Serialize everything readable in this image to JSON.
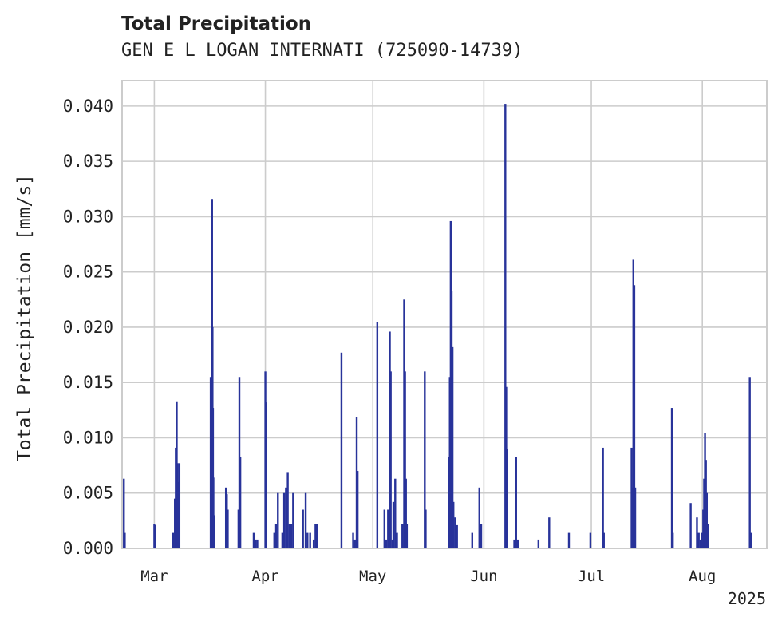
{
  "chart_data": {
    "type": "bar",
    "title": "Total Precipitation",
    "subtitle": "GEN E L LOGAN INTERNATI (725090-14739)",
    "ylabel": "Total Precipitation [mm/s]",
    "xlabel": "",
    "year_label": "2025",
    "bar_color": "#28339a",
    "grid": true,
    "xlim": [
      "2025-02-20",
      "2025-08-19"
    ],
    "ylim": [
      0,
      0.0423
    ],
    "x_ticks": [
      {
        "date": "2025-03-01",
        "label": "Mar"
      },
      {
        "date": "2025-04-01",
        "label": "Apr"
      },
      {
        "date": "2025-05-01",
        "label": "May"
      },
      {
        "date": "2025-06-01",
        "label": "Jun"
      },
      {
        "date": "2025-07-01",
        "label": "Jul"
      },
      {
        "date": "2025-08-01",
        "label": "Aug"
      }
    ],
    "y_ticks": [
      {
        "value": 0.0,
        "label": "0.000"
      },
      {
        "value": 0.005,
        "label": "0.005"
      },
      {
        "value": 0.01,
        "label": "0.010"
      },
      {
        "value": 0.015,
        "label": "0.015"
      },
      {
        "value": 0.02,
        "label": "0.020"
      },
      {
        "value": 0.025,
        "label": "0.025"
      },
      {
        "value": 0.03,
        "label": "0.030"
      },
      {
        "value": 0.035,
        "label": "0.035"
      },
      {
        "value": 0.04,
        "label": "0.040"
      }
    ],
    "series": [
      {
        "points": [
          [
            "2025-02-20T12:00",
            0.0063
          ],
          [
            "2025-02-20T18:00",
            0.0014
          ],
          [
            "2025-03-01T00:00",
            0.0022
          ],
          [
            "2025-03-01T06:00",
            0.0021
          ],
          [
            "2025-03-06T06:00",
            0.0014
          ],
          [
            "2025-03-06T18:00",
            0.0045
          ],
          [
            "2025-03-07T00:00",
            0.0091
          ],
          [
            "2025-03-07T06:00",
            0.0133
          ],
          [
            "2025-03-07T12:00",
            0.0077
          ],
          [
            "2025-03-07T18:00",
            0.006
          ],
          [
            "2025-03-08T00:00",
            0.0077
          ],
          [
            "2025-03-16T18:00",
            0.0155
          ],
          [
            "2025-03-17T00:00",
            0.0218
          ],
          [
            "2025-03-17T03:00",
            0.0316
          ],
          [
            "2025-03-17T06:00",
            0.02
          ],
          [
            "2025-03-17T09:00",
            0.0127
          ],
          [
            "2025-03-17T12:00",
            0.0064
          ],
          [
            "2025-03-17T18:00",
            0.003
          ],
          [
            "2025-03-21T00:00",
            0.0055
          ],
          [
            "2025-03-21T06:00",
            0.0049
          ],
          [
            "2025-03-21T12:00",
            0.0035
          ],
          [
            "2025-03-24T12:00",
            0.0035
          ],
          [
            "2025-03-24T18:00",
            0.0155
          ],
          [
            "2025-03-25T00:00",
            0.0083
          ],
          [
            "2025-03-28T18:00",
            0.0014
          ],
          [
            "2025-03-29T06:00",
            0.0008
          ],
          [
            "2025-03-29T18:00",
            0.0008
          ],
          [
            "2025-04-01T00:00",
            0.016
          ],
          [
            "2025-04-01T06:00",
            0.0132
          ],
          [
            "2025-04-03T12:00",
            0.0014
          ],
          [
            "2025-04-04T00:00",
            0.0022
          ],
          [
            "2025-04-04T12:00",
            0.005
          ],
          [
            "2025-04-05T18:00",
            0.0014
          ],
          [
            "2025-04-06T06:00",
            0.005
          ],
          [
            "2025-04-06T18:00",
            0.0055
          ],
          [
            "2025-04-07T06:00",
            0.0069
          ],
          [
            "2025-04-07T18:00",
            0.0022
          ],
          [
            "2025-04-08T06:00",
            0.0022
          ],
          [
            "2025-04-08T18:00",
            0.005
          ],
          [
            "2025-04-11T12:00",
            0.0035
          ],
          [
            "2025-04-12T06:00",
            0.005
          ],
          [
            "2025-04-12T18:00",
            0.0014
          ],
          [
            "2025-04-13T12:00",
            0.0014
          ],
          [
            "2025-04-14T12:00",
            0.0008
          ],
          [
            "2025-04-15T00:00",
            0.0022
          ],
          [
            "2025-04-15T12:00",
            0.0022
          ],
          [
            "2025-04-22T06:00",
            0.0177
          ],
          [
            "2025-04-25T12:00",
            0.0014
          ],
          [
            "2025-04-26T00:00",
            0.0008
          ],
          [
            "2025-04-26T12:00",
            0.0119
          ],
          [
            "2025-04-26T18:00",
            0.007
          ],
          [
            "2025-05-02T06:00",
            0.0205
          ],
          [
            "2025-05-04T06:00",
            0.0035
          ],
          [
            "2025-05-04T18:00",
            0.0008
          ],
          [
            "2025-05-05T06:00",
            0.0035
          ],
          [
            "2025-05-05T18:00",
            0.0196
          ],
          [
            "2025-05-06T00:00",
            0.016
          ],
          [
            "2025-05-06T12:00",
            0.0008
          ],
          [
            "2025-05-06T18:00",
            0.0042
          ],
          [
            "2025-05-07T06:00",
            0.0063
          ],
          [
            "2025-05-07T18:00",
            0.0014
          ],
          [
            "2025-05-09T06:00",
            0.0022
          ],
          [
            "2025-05-09T18:00",
            0.0225
          ],
          [
            "2025-05-10T00:00",
            0.016
          ],
          [
            "2025-05-10T06:00",
            0.0063
          ],
          [
            "2025-05-10T12:00",
            0.0022
          ],
          [
            "2025-05-15T12:00",
            0.016
          ],
          [
            "2025-05-15T18:00",
            0.0035
          ],
          [
            "2025-05-22T06:00",
            0.0083
          ],
          [
            "2025-05-22T12:00",
            0.0155
          ],
          [
            "2025-05-22T18:00",
            0.0296
          ],
          [
            "2025-05-23T00:00",
            0.0233
          ],
          [
            "2025-05-23T06:00",
            0.0182
          ],
          [
            "2025-05-23T12:00",
            0.0042
          ],
          [
            "2025-05-24T00:00",
            0.0028
          ],
          [
            "2025-05-24T12:00",
            0.0021
          ],
          [
            "2025-05-28T18:00",
            0.0014
          ],
          [
            "2025-05-30T18:00",
            0.0055
          ],
          [
            "2025-05-31T06:00",
            0.0022
          ],
          [
            "2025-06-07T00:00",
            0.0402
          ],
          [
            "2025-06-07T06:00",
            0.0146
          ],
          [
            "2025-06-07T12:00",
            0.009
          ],
          [
            "2025-06-09T12:00",
            0.0008
          ],
          [
            "2025-06-10T00:00",
            0.0083
          ],
          [
            "2025-06-10T12:00",
            0.0008
          ],
          [
            "2025-06-16T06:00",
            0.0008
          ],
          [
            "2025-06-19T06:00",
            0.0028
          ],
          [
            "2025-06-24T18:00",
            0.0014
          ],
          [
            "2025-06-30T18:00",
            0.0014
          ],
          [
            "2025-07-04T06:00",
            0.0091
          ],
          [
            "2025-07-04T12:00",
            0.0014
          ],
          [
            "2025-07-12T06:00",
            0.0091
          ],
          [
            "2025-07-12T12:00",
            0.0055
          ],
          [
            "2025-07-12T18:00",
            0.0261
          ],
          [
            "2025-07-13T00:00",
            0.0238
          ],
          [
            "2025-07-13T06:00",
            0.0055
          ],
          [
            "2025-07-23T12:00",
            0.0127
          ],
          [
            "2025-07-23T18:00",
            0.0014
          ],
          [
            "2025-07-28T18:00",
            0.0041
          ],
          [
            "2025-07-30T12:00",
            0.0028
          ],
          [
            "2025-07-31T00:00",
            0.0014
          ],
          [
            "2025-07-31T12:00",
            0.0008
          ],
          [
            "2025-08-01T00:00",
            0.0014
          ],
          [
            "2025-08-01T06:00",
            0.0035
          ],
          [
            "2025-08-01T12:00",
            0.0063
          ],
          [
            "2025-08-01T18:00",
            0.0104
          ],
          [
            "2025-08-02T00:00",
            0.008
          ],
          [
            "2025-08-02T06:00",
            0.005
          ],
          [
            "2025-08-02T12:00",
            0.0022
          ],
          [
            "2025-08-14T06:00",
            0.0155
          ],
          [
            "2025-08-14T12:00",
            0.0014
          ]
        ]
      }
    ]
  }
}
